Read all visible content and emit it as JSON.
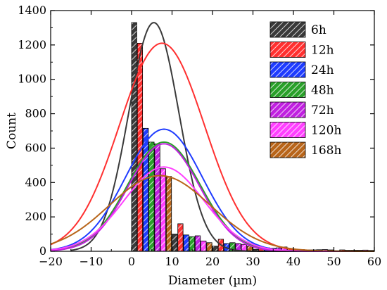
{
  "chart_data": {
    "type": "bar",
    "title": "",
    "xlabel": "Diameter (µm)",
    "ylabel": "Count",
    "xlim": [
      -20,
      60
    ],
    "ylim": [
      0,
      1400
    ],
    "xticks": [
      -20,
      -10,
      0,
      10,
      20,
      30,
      40,
      50,
      60
    ],
    "yticks": [
      0,
      200,
      400,
      600,
      800,
      1000,
      1200,
      1400
    ],
    "x_tick_labels": [
      "−20",
      "−10",
      "0",
      "10",
      "20",
      "30",
      "40",
      "50",
      "60"
    ],
    "y_tick_labels": [
      "0",
      "200",
      "400",
      "600",
      "800",
      "1000",
      "1200",
      "1400"
    ],
    "bin_width": 10,
    "bin_starts": [
      0,
      10,
      20,
      30,
      40,
      50
    ],
    "legend_position": "top-right",
    "series": [
      {
        "name": "6h",
        "color": "#3a3a3a",
        "values": [
          1330,
          100,
          30,
          12,
          5,
          3
        ],
        "fit": {
          "mean": 5.5,
          "sigma": 6.2,
          "amplitude": 1330,
          "x_start": -15
        }
      },
      {
        "name": "12h",
        "color": "#ff3030",
        "values": [
          1210,
          160,
          70,
          22,
          10,
          8
        ],
        "fit": {
          "mean": 7.5,
          "sigma": 10.5,
          "amplitude": 1210,
          "x_start": -20
        }
      },
      {
        "name": "24h",
        "color": "#1f3cff",
        "values": [
          715,
          95,
          45,
          20,
          8,
          6
        ],
        "fit": {
          "mean": 8,
          "sigma": 9.5,
          "amplitude": 710,
          "x_start": -20
        }
      },
      {
        "name": "48h",
        "color": "#2aa02a",
        "values": [
          635,
          85,
          50,
          18,
          8,
          6
        ],
        "fit": {
          "mean": 8,
          "sigma": 9,
          "amplitude": 635,
          "x_start": -20
        }
      },
      {
        "name": "72h",
        "color": "#c020e0",
        "values": [
          625,
          90,
          45,
          20,
          9,
          6
        ],
        "fit": {
          "mean": 8,
          "sigma": 8.8,
          "amplitude": 625,
          "x_start": -20
        }
      },
      {
        "name": "120h",
        "color": "#ff40ff",
        "values": [
          480,
          60,
          40,
          25,
          10,
          7
        ],
        "fit": {
          "mean": 8,
          "sigma": 9.8,
          "amplitude": 490,
          "x_start": -20
        }
      },
      {
        "name": "168h",
        "color": "#b8651a",
        "values": [
          435,
          50,
          30,
          15,
          8,
          5
        ],
        "fit": {
          "mean": 7,
          "sigma": 12.5,
          "amplitude": 440,
          "x_start": -20
        }
      }
    ]
  }
}
